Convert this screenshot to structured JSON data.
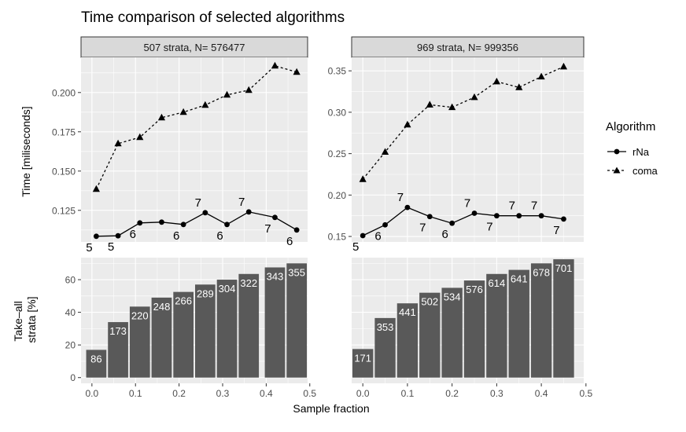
{
  "title": "Time comparison of selected algorithms",
  "xlabel": "Sample fraction",
  "colors": {
    "panel_bg": "#EBEBEB",
    "strip_bg": "#D9D9D9",
    "grid_major": "#FFFFFF",
    "bar_fill": "#595959",
    "ink": "#000000",
    "axis_text": "#4D4D4D"
  },
  "chart_data": [
    {
      "type": "line",
      "panel": "time",
      "ylabel": "Time [miliseconds]",
      "facets": [
        {
          "strip": "507 strata,  N= 576477",
          "xlim": [
            -0.025,
            0.495
          ],
          "ylim": [
            0.1049,
            0.2224
          ],
          "yticks": [
            0.125,
            0.15,
            0.175,
            0.2
          ],
          "yticklabels": [
            "0.125",
            "0.150",
            "0.175",
            "0.200"
          ],
          "series": [
            {
              "name": "rNa",
              "marker": "circle",
              "linestyle": "solid",
              "x": [
                0.01,
                0.06,
                0.11,
                0.16,
                0.21,
                0.26,
                0.31,
                0.36,
                0.42,
                0.47
              ],
              "y": [
                0.1085,
                0.1088,
                0.117,
                0.1175,
                0.116,
                0.1235,
                0.116,
                0.124,
                0.1205,
                0.1125
              ],
              "labels": [
                "5",
                "5",
                "6",
                "",
                "6",
                "7",
                "6",
                "7",
                "7",
                "6"
              ]
            },
            {
              "name": "coma",
              "marker": "triangle",
              "linestyle": "dashed",
              "x": [
                0.01,
                0.06,
                0.11,
                0.16,
                0.21,
                0.26,
                0.31,
                0.36,
                0.42,
                0.47
              ],
              "y": [
                0.1385,
                0.1675,
                0.1715,
                0.184,
                0.1875,
                0.192,
                0.1985,
                0.2015,
                0.217,
                0.213
              ]
            }
          ]
        },
        {
          "strip": "969 strata,  N= 999356",
          "xlim": [
            -0.025,
            0.495
          ],
          "ylim": [
            0.1434,
            0.3663
          ],
          "yticks": [
            0.15,
            0.2,
            0.25,
            0.3,
            0.35
          ],
          "yticklabels": [
            "0.15",
            "0.20",
            "0.25",
            "0.30",
            "0.35"
          ],
          "series": [
            {
              "name": "rNa",
              "marker": "circle",
              "linestyle": "solid",
              "x": [
                0.0,
                0.05,
                0.1,
                0.15,
                0.2,
                0.25,
                0.3,
                0.35,
                0.4,
                0.45
              ],
              "y": [
                0.151,
                0.164,
                0.185,
                0.174,
                0.166,
                0.178,
                0.175,
                0.175,
                0.175,
                0.171
              ],
              "labels": [
                "5",
                "6",
                "7",
                "7",
                "6",
                "7",
                "7",
                "7",
                "7",
                "7"
              ]
            },
            {
              "name": "coma",
              "marker": "triangle",
              "linestyle": "dashed",
              "x": [
                0.0,
                0.05,
                0.1,
                0.15,
                0.2,
                0.25,
                0.3,
                0.35,
                0.4,
                0.45
              ],
              "y": [
                0.219,
                0.252,
                0.285,
                0.309,
                0.306,
                0.318,
                0.337,
                0.33,
                0.343,
                0.355
              ]
            }
          ]
        }
      ],
      "legend": {
        "title": "Algorithm",
        "entries": [
          "rNa",
          "coma"
        ],
        "position": "right"
      }
    },
    {
      "type": "bar",
      "panel": "take-all",
      "ylabel": [
        "Take–all",
        "strata [%]"
      ],
      "ylim": [
        -3.5,
        73.5
      ],
      "yticks": [
        0,
        20,
        40,
        60
      ],
      "yticklabels": [
        "0",
        "20",
        "40",
        "60"
      ],
      "xticks": [
        0.0,
        0.1,
        0.2,
        0.3,
        0.4,
        0.5
      ],
      "xticklabels": [
        "0.0",
        "0.1",
        "0.2",
        "0.3",
        "0.4",
        "0.5"
      ],
      "facets": [
        {
          "xlim": [
            -0.025,
            0.495
          ],
          "x": [
            0.01,
            0.06,
            0.11,
            0.16,
            0.21,
            0.26,
            0.31,
            0.36,
            0.42,
            0.47
          ],
          "values": [
            17,
            34,
            43.5,
            49,
            52.5,
            57,
            60,
            63.5,
            67.5,
            70
          ],
          "labels": [
            "86",
            "173",
            "220",
            "248",
            "266",
            "289",
            "304",
            "322",
            "343",
            "355"
          ]
        },
        {
          "xlim": [
            -0.025,
            0.495
          ],
          "x": [
            0.0,
            0.05,
            0.1,
            0.15,
            0.2,
            0.25,
            0.3,
            0.35,
            0.4,
            0.45
          ],
          "values": [
            17.5,
            36.5,
            45.5,
            52,
            55,
            59.5,
            63.5,
            66,
            70,
            72.5
          ],
          "labels": [
            "171",
            "353",
            "441",
            "502",
            "534",
            "576",
            "614",
            "641",
            "678",
            "701"
          ]
        }
      ]
    }
  ]
}
